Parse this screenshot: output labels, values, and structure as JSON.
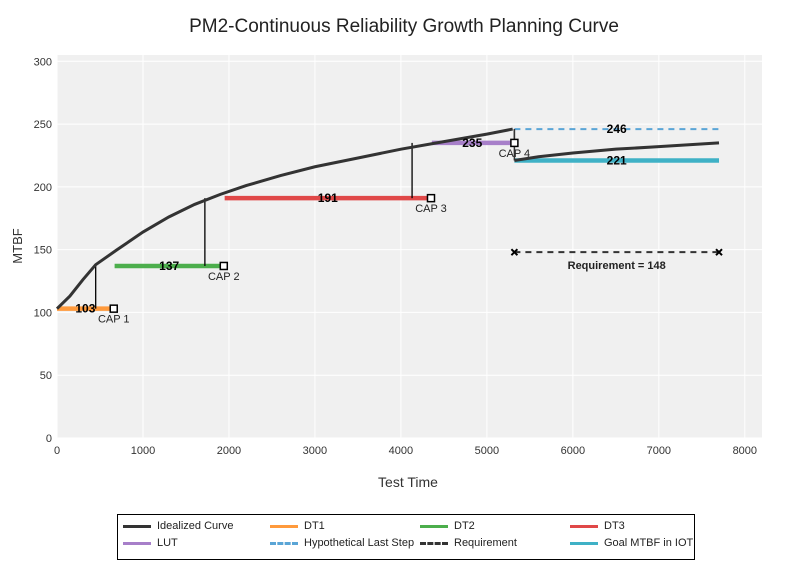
{
  "chart_data": {
    "type": "line",
    "title": "PM2-Continuous Reliability Growth Planning Curve",
    "xlabel": "Test Time",
    "ylabel": "MTBF",
    "xlim": [
      0,
      8200
    ],
    "ylim": [
      0,
      305
    ],
    "xticks": [
      0,
      1000,
      2000,
      3000,
      4000,
      5000,
      6000,
      7000,
      8000
    ],
    "yticks": [
      0,
      50,
      100,
      150,
      200,
      250,
      300
    ],
    "grid": true,
    "idealized_curve": {
      "name": "Idealized Curve",
      "color": "#333333",
      "points": [
        [
          0,
          103
        ],
        [
          150,
          113
        ],
        [
          300,
          126
        ],
        [
          450,
          138
        ],
        [
          700,
          150
        ],
        [
          1000,
          164
        ],
        [
          1300,
          176
        ],
        [
          1600,
          186
        ],
        [
          1900,
          194
        ],
        [
          2200,
          201
        ],
        [
          2600,
          209
        ],
        [
          3000,
          216
        ],
        [
          3500,
          223
        ],
        [
          4000,
          230
        ],
        [
          4500,
          236
        ],
        [
          5000,
          242
        ],
        [
          5300,
          246
        ]
      ]
    },
    "post_step_curve": {
      "color": "#333333",
      "points": [
        [
          5320,
          221
        ],
        [
          5600,
          224
        ],
        [
          6000,
          227
        ],
        [
          6500,
          230
        ],
        [
          7000,
          232
        ],
        [
          7700,
          235
        ]
      ]
    },
    "series": [
      {
        "name": "DT1",
        "color": "#ff9a3c",
        "x": [
          0,
          660
        ],
        "y": 103,
        "label": "103",
        "cap": "CAP 1",
        "cap_x": 660
      },
      {
        "name": "DT2",
        "color": "#4cae4c",
        "x": [
          670,
          1940
        ],
        "y": 137,
        "label": "137",
        "cap": "CAP 2",
        "cap_x": 1940
      },
      {
        "name": "DT3",
        "color": "#e04848",
        "x": [
          1950,
          4350
        ],
        "y": 191,
        "label": "191",
        "cap": "CAP 3",
        "cap_x": 4350
      },
      {
        "name": "LUT",
        "color": "#a77fc9",
        "x": [
          4360,
          5320
        ],
        "y": 235,
        "label": "235",
        "cap": "CAP 4",
        "cap_x": 5320
      },
      {
        "name": "Hypothetical Last Step",
        "color": "#5aa5d6",
        "x": [
          5320,
          7700
        ],
        "y": 246,
        "label": "246",
        "dash": true
      },
      {
        "name": "Requirement",
        "color": "#333333",
        "x": [
          5320,
          7700
        ],
        "y": 148,
        "label": "Requirement = 148",
        "dash": true
      },
      {
        "name": "Goal MTBF in IOT",
        "color": "#3fb1c6",
        "x": [
          5320,
          7700
        ],
        "y": 221,
        "label": "221"
      }
    ],
    "label_x": {
      "DT1": 330,
      "DT2": 1305,
      "DT3": 3150,
      "LUT": 4830,
      "Hypothetical Last Step": 6510,
      "Goal MTBF in IOT": 6510,
      "Requirement": 6510
    },
    "vertical_connectors": [
      [
        450,
        103,
        138
      ],
      [
        1720,
        137,
        191
      ],
      [
        4130,
        191,
        235
      ],
      [
        5320,
        235,
        246
      ]
    ],
    "legend": [
      {
        "name": "Idealized Curve",
        "color": "#333333",
        "style": "solid"
      },
      {
        "name": "DT1",
        "color": "#ff9a3c",
        "style": "solid"
      },
      {
        "name": "DT2",
        "color": "#4cae4c",
        "style": "solid"
      },
      {
        "name": "DT3",
        "color": "#e04848",
        "style": "solid"
      },
      {
        "name": "LUT",
        "color": "#a77fc9",
        "style": "solid"
      },
      {
        "name": "Hypothetical Last Step",
        "color": "#5aa5d6",
        "style": "dash"
      },
      {
        "name": "Requirement",
        "color": "#333333",
        "style": "dash"
      },
      {
        "name": "Goal MTBF in IOT",
        "color": "#3fb1c6",
        "style": "solid"
      }
    ]
  }
}
